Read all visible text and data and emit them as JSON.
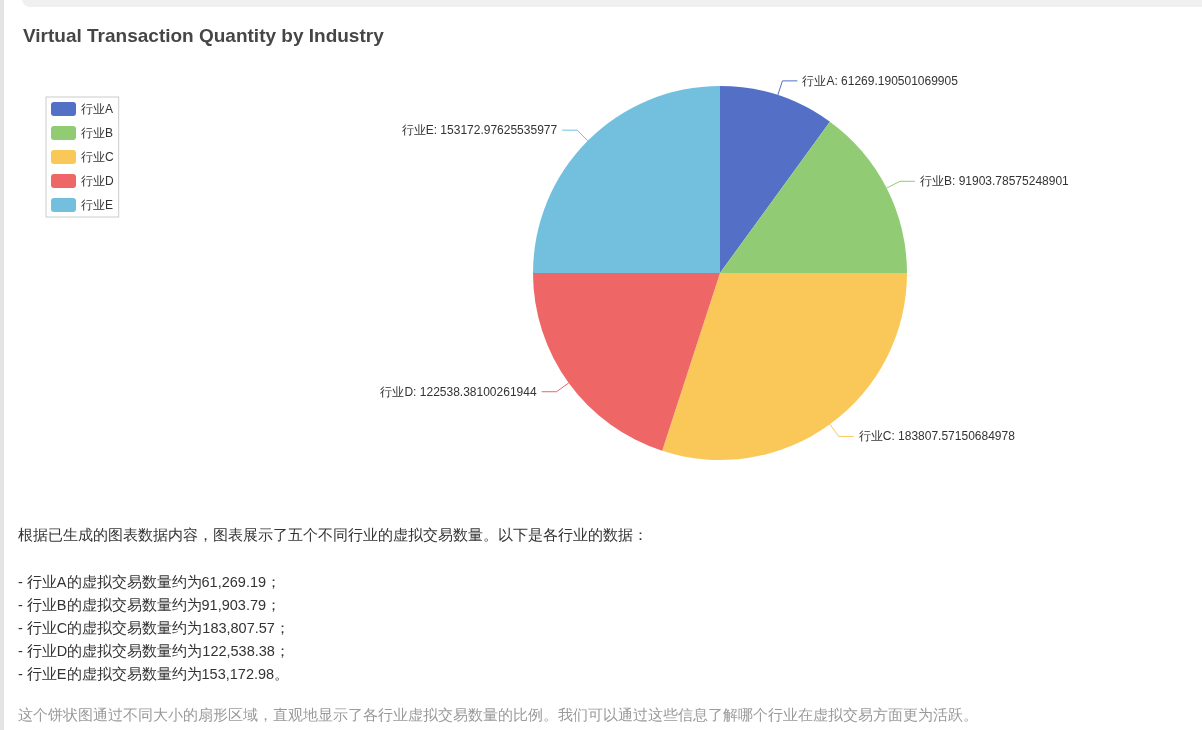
{
  "chart_data": {
    "type": "pie",
    "title": "Virtual Transaction Quantity by Industry",
    "categories": [
      "行业A",
      "行业B",
      "行业C",
      "行业D",
      "行业E"
    ],
    "values": [
      61269.190501069905,
      91903.78575248901,
      183807.57150684978,
      122538.38100261944,
      153172.97625535977
    ],
    "value_labels": [
      "行业A: 61269.190501069905",
      "行业B: 91903.78575248901",
      "行业C: 183807.57150684978",
      "行业D: 122538.38100261944",
      "行业E: 153172.97625535977"
    ],
    "colors": [
      "#5470c6",
      "#91cc75",
      "#fac858",
      "#ee6666",
      "#73c0de"
    ],
    "legend": "top left",
    "annotations": [
      "根据已生成的图表数据内容，图表展示了五个不同行业的虚拟交易数量。以下是各行业的数据：",
      "- 行业A的虚拟交易数量约为61,269.19；",
      "- 行业B的虚拟交易数量约为91,903.79；",
      "- 行业C的虚拟交易数量约为183,807.57；",
      "- 行业D的虚拟交易数量约为122,538.38；",
      "- 行业E的虚拟交易数量约为153,172.98。",
      "这个饼状图通过不同大小的扇形区域，直观地显示了各行业虚拟交易数量的比例。我们可以通过这些信息了解哪个行业在虚拟交易方面更为活跃。"
    ]
  }
}
